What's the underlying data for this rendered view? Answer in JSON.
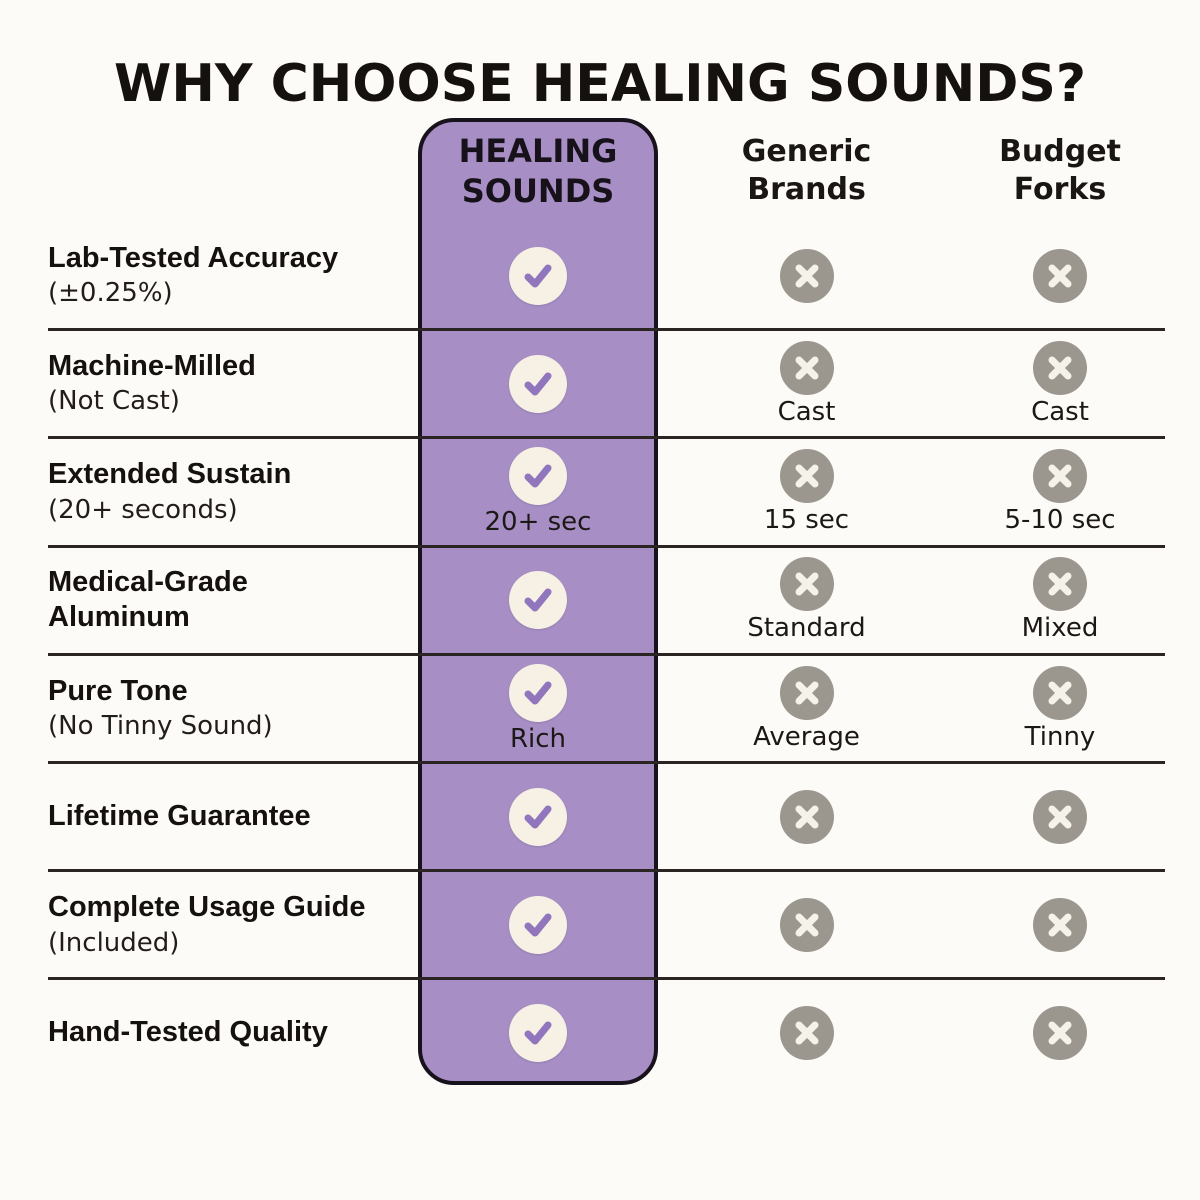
{
  "title": "WHY CHOOSE HEALING SOUNDS?",
  "colors": {
    "bg": "#fdfbf8",
    "accent_purple": "#a78fc6",
    "column_border": "#18121c",
    "check_circle": "#f6f1e4",
    "check_mark": "#9175bd",
    "cross_circle": "#9b978f",
    "cross_mark": "#f5f2ea",
    "divider": "#2a2522"
  },
  "columns": [
    {
      "id": "healing",
      "line1": "HEALING",
      "line2": "SOUNDS",
      "highlight": true
    },
    {
      "id": "generic",
      "line1": "Generic",
      "line2": "Brands",
      "highlight": false
    },
    {
      "id": "budget",
      "line1": "Budget",
      "line2": "Forks",
      "highlight": false
    }
  ],
  "rows": [
    {
      "feature": "Lab-Tested Accuracy",
      "detail": "(±0.25%)",
      "cells": [
        {
          "column": "healing",
          "icon": "check",
          "note": ""
        },
        {
          "column": "generic",
          "icon": "cross",
          "note": ""
        },
        {
          "column": "budget",
          "icon": "cross",
          "note": ""
        }
      ]
    },
    {
      "feature": "Machine-Milled",
      "detail": "(Not Cast)",
      "cells": [
        {
          "column": "healing",
          "icon": "check",
          "note": ""
        },
        {
          "column": "generic",
          "icon": "cross",
          "note": "Cast"
        },
        {
          "column": "budget",
          "icon": "cross",
          "note": "Cast"
        }
      ]
    },
    {
      "feature": "Extended Sustain",
      "detail": "(20+ seconds)",
      "cells": [
        {
          "column": "healing",
          "icon": "check",
          "note": "20+ sec"
        },
        {
          "column": "generic",
          "icon": "cross",
          "note": "15 sec"
        },
        {
          "column": "budget",
          "icon": "cross",
          "note": "5-10 sec"
        }
      ]
    },
    {
      "feature": "Medical-Grade Aluminum",
      "detail": "",
      "cells": [
        {
          "column": "healing",
          "icon": "check",
          "note": ""
        },
        {
          "column": "generic",
          "icon": "cross",
          "note": "Standard"
        },
        {
          "column": "budget",
          "icon": "cross",
          "note": "Mixed"
        }
      ]
    },
    {
      "feature": "Pure Tone",
      "detail": "(No Tinny Sound)",
      "cells": [
        {
          "column": "healing",
          "icon": "check",
          "note": "Rich"
        },
        {
          "column": "generic",
          "icon": "cross",
          "note": "Average"
        },
        {
          "column": "budget",
          "icon": "cross",
          "note": "Tinny"
        }
      ]
    },
    {
      "feature": "Lifetime Guarantee",
      "detail": "",
      "cells": [
        {
          "column": "healing",
          "icon": "check",
          "note": ""
        },
        {
          "column": "generic",
          "icon": "cross",
          "note": ""
        },
        {
          "column": "budget",
          "icon": "cross",
          "note": ""
        }
      ]
    },
    {
      "feature": "Complete Usage Guide",
      "detail": "(Included)",
      "cells": [
        {
          "column": "healing",
          "icon": "check",
          "note": ""
        },
        {
          "column": "generic",
          "icon": "cross",
          "note": ""
        },
        {
          "column": "budget",
          "icon": "cross",
          "note": ""
        }
      ]
    },
    {
      "feature": "Hand-Tested Quality",
      "detail": "",
      "cells": [
        {
          "column": "healing",
          "icon": "check",
          "note": ""
        },
        {
          "column": "generic",
          "icon": "cross",
          "note": ""
        },
        {
          "column": "budget",
          "icon": "cross",
          "note": ""
        }
      ]
    }
  ]
}
